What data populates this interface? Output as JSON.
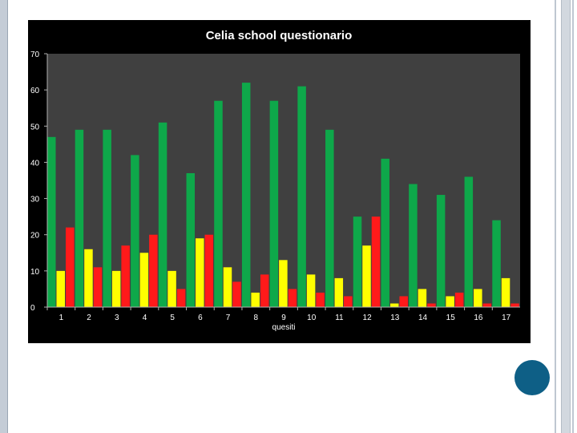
{
  "chart_data": {
    "type": "bar",
    "title": "Celia school questionario",
    "xlabel": "quesiti",
    "ylabel": "",
    "ylim": [
      0,
      70
    ],
    "yticks": [
      0,
      10,
      20,
      30,
      40,
      50,
      60,
      70
    ],
    "categories": [
      "1",
      "2",
      "3",
      "4",
      "5",
      "6",
      "7",
      "8",
      "9",
      "10",
      "11",
      "12",
      "13",
      "14",
      "15",
      "16",
      "17"
    ],
    "series": [
      {
        "color": "#0ea84a",
        "values": [
          47,
          49,
          49,
          42,
          51,
          37,
          57,
          62,
          57,
          61,
          49,
          25,
          41,
          34,
          31,
          36,
          24
        ]
      },
      {
        "color": "#ff1a1a",
        "values": [
          22,
          11,
          17,
          20,
          5,
          20,
          7,
          9,
          5,
          4,
          3,
          25,
          3,
          1,
          4,
          1,
          1
        ]
      },
      {
        "color": "#ffff00",
        "values": [
          10,
          16,
          10,
          15,
          10,
          19,
          11,
          4,
          13,
          9,
          8,
          17,
          1,
          5,
          3,
          5,
          8
        ]
      }
    ],
    "plot_background": "#404040",
    "background": "#000000",
    "grid": false,
    "legend": "none"
  }
}
